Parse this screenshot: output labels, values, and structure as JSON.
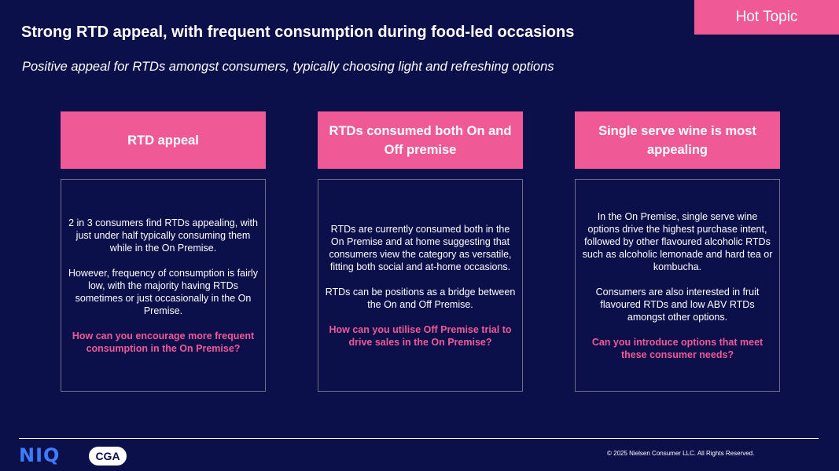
{
  "tag": "Hot Topic",
  "title": "Strong RTD appeal, with frequent consumption during food-led occasions",
  "subtitle": "Positive appeal for RTDs amongst consumers, typically choosing light and refreshing options",
  "columns": [
    {
      "header": "RTD appeal",
      "paragraphs": [
        "2 in 3 consumers find RTDs appealing, with just under half typically consuming them while in the On Premise.",
        "However, frequency of consumption is fairly low, with the majority having RTDs sometimes or just occasionally in the On Premise."
      ],
      "question": "How can you encourage more frequent consumption in the On Premise?"
    },
    {
      "header": "RTDs consumed both On and Off premise",
      "paragraphs": [
        "RTDs are currently consumed both in the On Premise and at home suggesting that consumers view the category as versatile, fitting both social and at-home occasions.",
        "RTDs can be positions as a bridge between the On and Off Premise."
      ],
      "question": "How can you utilise Off Premise trial to drive sales in the On Premise?"
    },
    {
      "header": "Single serve wine is most appealing",
      "paragraphs": [
        "In the On Premise, single serve wine options drive the highest purchase intent, followed by other flavoured alcoholic RTDs such as alcoholic lemonade and hard tea or kombucha.",
        "Consumers are also interested in fruit flavoured RTDs and low ABV RTDs amongst other options."
      ],
      "question": "Can you introduce options that meet these consumer needs?"
    }
  ],
  "footer": {
    "niq_logo": "NIQ",
    "cga_logo": "CGA",
    "copyright": "© 2025 Nielsen Consumer LLC. All Rights Reserved."
  },
  "colors": {
    "background": "#0b0f4a",
    "accent": "#ef5a96",
    "niq_blue": "#3d7bff"
  }
}
